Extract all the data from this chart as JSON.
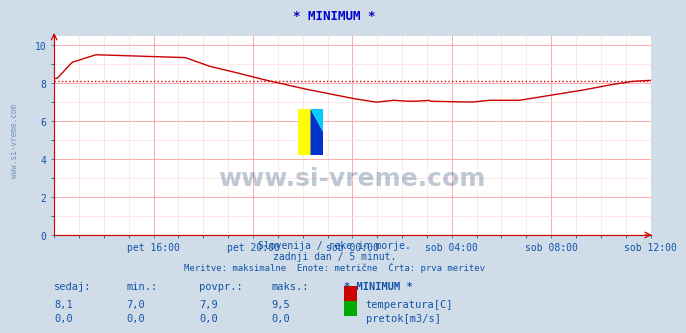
{
  "title": "* MINIMUM *",
  "title_color": "#0000cc",
  "bg_color": "#d0dce8",
  "plot_bg_color": "#ffffff",
  "grid_color_major": "#ffaaaa",
  "grid_color_minor": "#ffdddd",
  "xlabel_ticks": [
    "pet 16:00",
    "pet 20:00",
    "sob 00:00",
    "sob 04:00",
    "sob 08:00",
    "sob 12:00"
  ],
  "ylabel_ticks": [
    "0",
    "2",
    "4",
    "6",
    "8",
    "10"
  ],
  "ylim": [
    0,
    10.5
  ],
  "xlim": [
    0,
    288
  ],
  "watermark": "www.si-vreme.com",
  "watermark_color": "#1a3a6a",
  "watermark_alpha": 0.28,
  "side_label": "www.si-vreme.com",
  "side_label_color": "#5577aa",
  "avg_line_value": 8.1,
  "avg_line_color": "#cc0000",
  "temp_line_color": "#cc0000",
  "flow_line_color": "#008800",
  "subtitle1": "Slovenija / reke in morje.",
  "subtitle2": "zadnji dan / 5 minut.",
  "subtitle3": "Meritve: maksimalne  Enote: metrične  Črta: prva meritev",
  "subtitle_color": "#1155aa",
  "table_header": [
    "sedaj:",
    "min.:",
    "povpr.:",
    "maks.:",
    "* MINIMUM *"
  ],
  "table_row1_vals": [
    "8,1",
    "7,0",
    "7,9",
    "9,5"
  ],
  "table_row1_label": "temperatura[C]",
  "table_row2_vals": [
    "0,0",
    "0,0",
    "0,0",
    "0,0"
  ],
  "table_row2_label": "pretok[m3/s]",
  "table_color": "#1155aa",
  "table_header_color": "#1155aa",
  "legend_temp_color": "#cc0000",
  "legend_flow_color": "#00aa00",
  "logo_yellow": "#ffff00",
  "logo_blue": "#0033cc",
  "logo_cyan": "#00ccff"
}
